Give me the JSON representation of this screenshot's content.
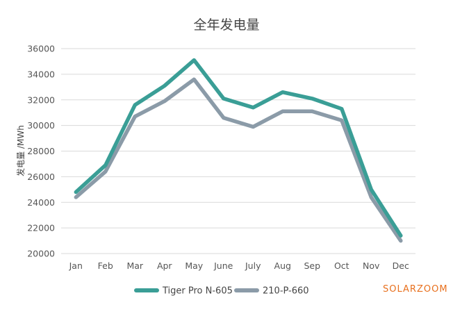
{
  "chart_data": {
    "type": "line",
    "title": "全年发电量",
    "ylabel": "发电量 /MWh",
    "xlabel": "",
    "categories": [
      "Jan",
      "Feb",
      "Mar",
      "Apr",
      "May",
      "June",
      "July",
      "Aug",
      "Sep",
      "Oct",
      "Nov",
      "Dec"
    ],
    "ylim": [
      20000,
      36000
    ],
    "yticks": [
      20000,
      22000,
      24000,
      26000,
      28000,
      30000,
      32000,
      34000,
      36000
    ],
    "grid": true,
    "legend_position": "bottom",
    "series": [
      {
        "name": "Tiger Pro N-605",
        "color": "#3a9e96",
        "values": [
          24800,
          26900,
          31600,
          33100,
          35100,
          32100,
          31400,
          32600,
          32100,
          31300,
          25000,
          21400
        ]
      },
      {
        "name": "210-P-660",
        "color": "#8b9ba8",
        "values": [
          24400,
          26400,
          30700,
          31900,
          33600,
          30600,
          29900,
          31100,
          31100,
          30400,
          24400,
          21000
        ]
      }
    ]
  },
  "watermark": "SOLARZOOM"
}
